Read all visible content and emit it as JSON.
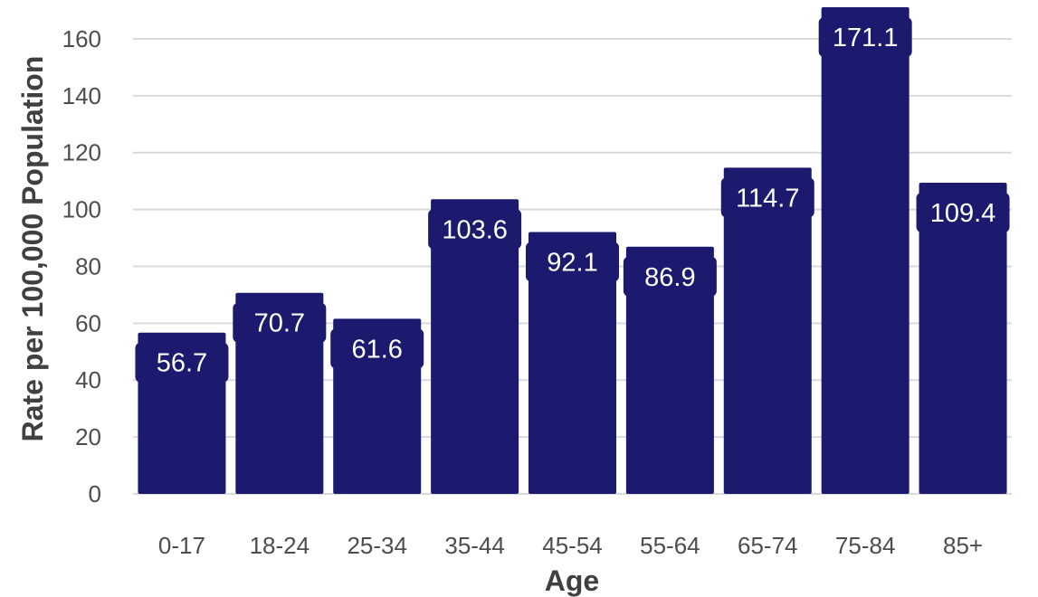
{
  "chart_data": {
    "type": "bar",
    "categories": [
      "0-17",
      "18-24",
      "25-34",
      "35-44",
      "45-54",
      "55-64",
      "65-74",
      "75-84",
      "85+"
    ],
    "values": [
      56.7,
      70.7,
      61.6,
      103.6,
      92.1,
      86.9,
      114.7,
      171.1,
      109.4
    ],
    "value_labels": [
      "56.7",
      "70.7",
      "61.6",
      "103.6",
      "92.1",
      "86.9",
      "114.7",
      "171.1",
      "109.4"
    ],
    "xlabel": "Age",
    "ylabel": "Rate per 100,000 Population",
    "ylim": [
      0,
      171.1
    ],
    "yticks": [
      0,
      20,
      40,
      60,
      80,
      100,
      120,
      140,
      160
    ],
    "grid": true,
    "legend": "none",
    "bar_color": "#1b1a6e",
    "label_color": "#ffffff"
  }
}
